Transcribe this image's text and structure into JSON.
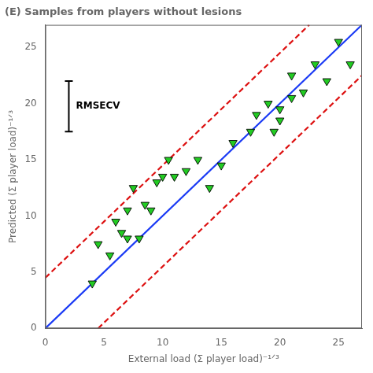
{
  "chart_data": {
    "type": "scatter",
    "title": "(E) Samples from players without lesions",
    "xlabel": "External load (Σ player load)⁻¹ᐟ³",
    "ylabel": "Predicted (Σ player load)⁻¹ᐟ³",
    "xlim": [
      0,
      27
    ],
    "ylim": [
      0,
      27
    ],
    "xticks": [
      0,
      5,
      10,
      15,
      20,
      25
    ],
    "yticks": [
      0,
      5,
      10,
      15,
      20,
      25
    ],
    "grid": false,
    "series": [
      {
        "type": "scatter",
        "color": "#22cc22",
        "marker": "triangle_down",
        "x": [
          4.0,
          4.5,
          5.5,
          6.0,
          6.5,
          7.0,
          7.0,
          7.5,
          8.0,
          8.5,
          9.0,
          9.5,
          10.0,
          10.5,
          11.0,
          12.0,
          13.0,
          14.0,
          15.0,
          16.0,
          17.5,
          18.0,
          19.0,
          19.5,
          20.0,
          20.0,
          21.0,
          21.0,
          22.0,
          23.0,
          24.0,
          25.0,
          26.0
        ],
        "values": [
          4.0,
          7.5,
          6.5,
          9.5,
          8.5,
          8.0,
          10.5,
          12.5,
          8.0,
          11.0,
          10.5,
          13.0,
          13.5,
          15.0,
          13.5,
          14.0,
          15.0,
          12.5,
          14.5,
          16.5,
          17.5,
          19.0,
          20.0,
          17.5,
          19.5,
          18.5,
          20.5,
          22.5,
          21.0,
          23.5,
          22.0,
          25.5,
          23.5
        ]
      },
      {
        "type": "line",
        "color": "#1a3af5",
        "line_style": "solid",
        "x": [
          0,
          27
        ],
        "values": [
          0,
          27
        ]
      },
      {
        "type": "line",
        "color": "#dd1111",
        "line_style": "dashed",
        "x": [
          0,
          22.5
        ],
        "values": [
          4.5,
          27
        ]
      },
      {
        "type": "line",
        "color": "#dd1111",
        "line_style": "dashed",
        "x": [
          4.5,
          27
        ],
        "values": [
          0,
          22.5
        ]
      }
    ],
    "annotations": [
      {
        "text": "RMSECV",
        "x": 2.0,
        "y_range": [
          17.5,
          22.0
        ]
      }
    ]
  }
}
